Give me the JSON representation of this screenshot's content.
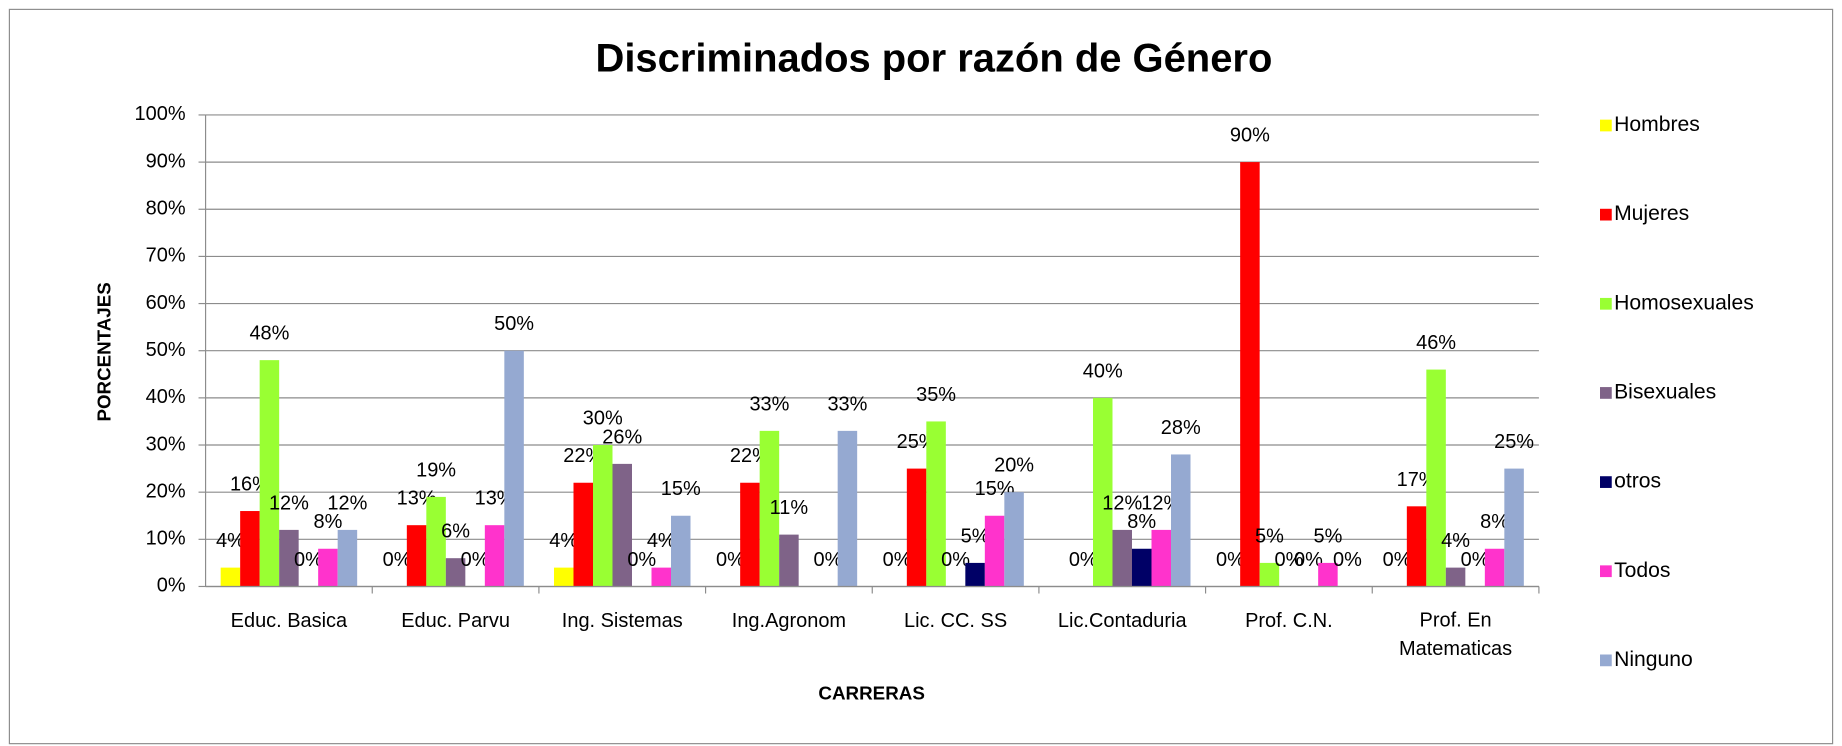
{
  "chart_data": {
    "type": "bar",
    "title": "Discriminados por razón de Género",
    "x_label": "CARRERAS",
    "y_label": "PORCENTAJES",
    "categories": [
      "Educ. Basica",
      "Educ. Parvu",
      "Ing. Sistemas",
      "Ing.Agronom",
      "Lic. CC. SS",
      "Lic.Contaduria",
      "Prof. C.N.",
      "Prof. En Matematicas"
    ],
    "series": [
      {
        "name": "Hombres",
        "color": "#ffff00",
        "values": [
          4,
          0,
          4,
          0,
          0,
          0,
          0,
          0
        ],
        "value_labels": [
          "4%",
          "0%",
          "4%",
          "0%",
          "0%",
          null,
          "0%",
          "0%"
        ]
      },
      {
        "name": "Mujeres",
        "color": "#ff0000",
        "values": [
          16,
          13,
          22,
          22,
          25,
          0,
          90,
          17
        ],
        "value_labels": [
          "16%",
          "13%",
          "22%",
          "22%",
          "25%",
          "0%",
          "90%",
          "17%"
        ]
      },
      {
        "name": "Homosexuales",
        "color": "#99ff33",
        "values": [
          48,
          19,
          30,
          33,
          35,
          40,
          5,
          46
        ],
        "value_labels": [
          "48%",
          "19%",
          "30%",
          "33%",
          "35%",
          "40%",
          "5%",
          "46%"
        ]
      },
      {
        "name": "Bisexuales",
        "color": "#7f6388",
        "values": [
          12,
          6,
          26,
          11,
          0,
          12,
          0,
          4
        ],
        "value_labels": [
          "12%",
          "6%",
          "26%",
          "11%",
          "0%",
          "12%",
          "0%",
          "4%"
        ]
      },
      {
        "name": "otros",
        "color": "#000066",
        "values": [
          0,
          0,
          0,
          0,
          5,
          8,
          0,
          0
        ],
        "value_labels": [
          "0%",
          "0%",
          "0%",
          null,
          "5%",
          "8%",
          "0%",
          "0%"
        ]
      },
      {
        "name": "Todos",
        "color": "#ff33cc",
        "values": [
          8,
          13,
          4,
          0,
          15,
          12,
          5,
          8
        ],
        "value_labels": [
          "8%",
          "13%",
          "4%",
          "0%",
          "15%",
          "12%",
          "5%",
          "8%"
        ]
      },
      {
        "name": "Ninguno",
        "color": "#95a9d1",
        "values": [
          12,
          50,
          15,
          33,
          20,
          28,
          0,
          25
        ],
        "value_labels": [
          "12%",
          "50%",
          "15%",
          "33%",
          "20%",
          "28%",
          "0%",
          "25%"
        ]
      }
    ],
    "ylim": [
      0,
      100
    ],
    "yticks": [
      {
        "value": 0,
        "label": "0%"
      },
      {
        "value": 10,
        "label": "10%"
      },
      {
        "value": 20,
        "label": "20%"
      },
      {
        "value": 30,
        "label": "30%"
      },
      {
        "value": 40,
        "label": "40%"
      },
      {
        "value": 50,
        "label": "50%"
      },
      {
        "value": 60,
        "label": "60%"
      },
      {
        "value": 70,
        "label": "70%"
      },
      {
        "value": 80,
        "label": "80%"
      },
      {
        "value": 90,
        "label": "90%"
      },
      {
        "value": 100,
        "label": "100%"
      }
    ],
    "grid": true,
    "legend": "right"
  }
}
